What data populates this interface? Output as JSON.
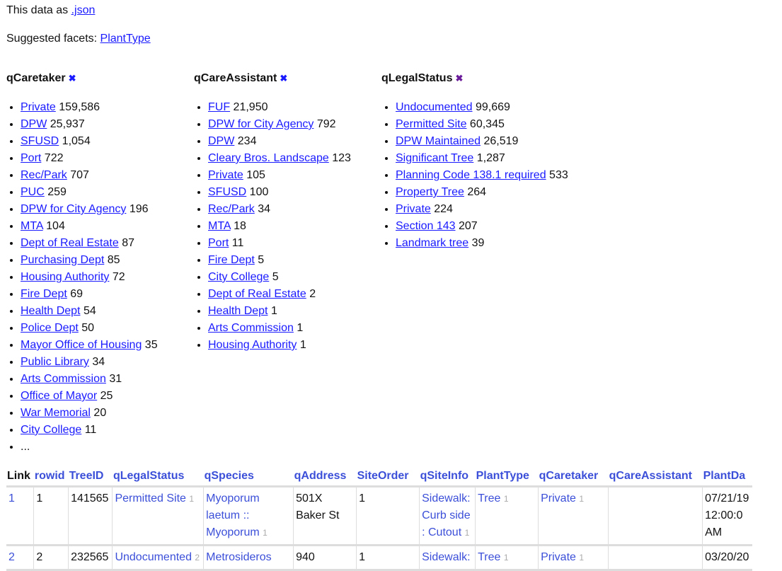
{
  "json_line": {
    "prefix": "This data as ",
    "link": ".json"
  },
  "suggested": {
    "prefix": "Suggested facets: ",
    "link": "PlantType"
  },
  "facets": [
    {
      "title": "qCaretaker",
      "remove_icon": "close-x-icon",
      "items": [
        [
          "Private",
          "159,586"
        ],
        [
          "DPW",
          "25,937"
        ],
        [
          "SFUSD",
          "1,054"
        ],
        [
          "Port",
          "722"
        ],
        [
          "Rec/Park",
          "707"
        ],
        [
          "PUC",
          "259"
        ],
        [
          "DPW for City Agency",
          "196"
        ],
        [
          "MTA",
          "104"
        ],
        [
          "Dept of Real Estate",
          "87"
        ],
        [
          "Purchasing Dept",
          "85"
        ],
        [
          "Housing Authority",
          "72"
        ],
        [
          "Fire Dept",
          "69"
        ],
        [
          "Health Dept",
          "54"
        ],
        [
          "Police Dept",
          "50"
        ],
        [
          "Mayor Office of Housing",
          "35"
        ],
        [
          "Public Library",
          "34"
        ],
        [
          "Arts Commission",
          "31"
        ],
        [
          "Office of Mayor",
          "25"
        ],
        [
          "War Memorial",
          "20"
        ],
        [
          "City College",
          "11"
        ]
      ],
      "more": "..."
    },
    {
      "title": "qCareAssistant",
      "remove_icon": "close-x-icon",
      "items": [
        [
          "FUF",
          "21,950"
        ],
        [
          "DPW for City Agency",
          "792"
        ],
        [
          "DPW",
          "234"
        ],
        [
          "Cleary Bros. Landscape",
          "123"
        ],
        [
          "Private",
          "105"
        ],
        [
          "SFUSD",
          "100"
        ],
        [
          "Rec/Park",
          "34"
        ],
        [
          "MTA",
          "18"
        ],
        [
          "Port",
          "11"
        ],
        [
          "Fire Dept",
          "5"
        ],
        [
          "City College",
          "5"
        ],
        [
          "Dept of Real Estate",
          "2"
        ],
        [
          "Health Dept",
          "1"
        ],
        [
          "Arts Commission",
          "1"
        ],
        [
          "Housing Authority",
          "1"
        ]
      ]
    },
    {
      "title": "qLegalStatus",
      "remove_icon": "close-x-icon",
      "items": [
        [
          "Undocumented",
          "99,669"
        ],
        [
          "Permitted Site",
          "60,345"
        ],
        [
          "DPW Maintained",
          "26,519"
        ],
        [
          "Significant Tree",
          "1,287"
        ],
        [
          "Planning Code 138.1 required",
          "533"
        ],
        [
          "Property Tree",
          "264"
        ],
        [
          "Private",
          "224"
        ],
        [
          "Section 143",
          "207"
        ],
        [
          "Landmark tree",
          "39"
        ]
      ]
    }
  ],
  "table": {
    "columns": [
      "Link",
      "rowid",
      "TreeID",
      "qLegalStatus",
      "qSpecies",
      "qAddress",
      "SiteOrder",
      "qSiteInfo",
      "PlantType",
      "qCaretaker",
      "qCareAssistant",
      "PlantDa"
    ],
    "rows": [
      {
        "link": "1",
        "rowid": "1",
        "treeid": "141565",
        "legal": "Permitted Site",
        "legal_n": "1",
        "species": "Myoporum laetum :: Myoporum",
        "species_n": "1",
        "address": "501X Baker St",
        "siteorder": "1",
        "siteinfo": "Sidewalk: Curb side : Cutout",
        "siteinfo_n": "1",
        "planttype": "Tree",
        "planttype_n": "1",
        "caretaker": "Private",
        "caretaker_n": "1",
        "assistant": "",
        "plantdate": "07/21/19 12:00:0 AM"
      },
      {
        "link": "2",
        "rowid": "2",
        "treeid": "232565",
        "legal": "Undocumented",
        "legal_n": "2",
        "species": "Metrosideros",
        "species_n": "",
        "address": "940",
        "siteorder": "1",
        "siteinfo": "Sidewalk:",
        "siteinfo_n": "",
        "planttype": "Tree",
        "planttype_n": "1",
        "caretaker": "Private",
        "caretaker_n": "1",
        "assistant": "",
        "plantdate": "03/20/20"
      }
    ]
  }
}
